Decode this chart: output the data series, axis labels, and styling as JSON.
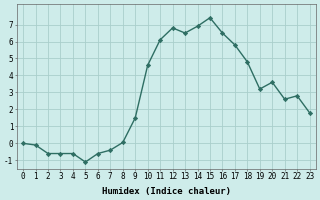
{
  "x": [
    0,
    1,
    2,
    3,
    4,
    5,
    6,
    7,
    8,
    9,
    10,
    11,
    12,
    13,
    14,
    15,
    16,
    17,
    18,
    19,
    20,
    21,
    22,
    23
  ],
  "y": [
    0.0,
    -0.1,
    -0.6,
    -0.6,
    -0.6,
    -1.1,
    -0.6,
    -0.4,
    0.05,
    1.5,
    4.6,
    6.1,
    6.8,
    6.5,
    6.9,
    7.4,
    6.5,
    5.8,
    4.8,
    3.2,
    3.6,
    2.6,
    2.8,
    1.8
  ],
  "bg_color": "#ceecea",
  "line_color": "#2e6e63",
  "marker": "D",
  "markersize": 2.2,
  "linewidth": 1.0,
  "xlabel": "Humidex (Indice chaleur)",
  "xlim": [
    -0.5,
    23.5
  ],
  "ylim": [
    -1.5,
    8.2
  ],
  "yticks": [
    -1,
    0,
    1,
    2,
    3,
    4,
    5,
    6,
    7
  ],
  "xticks": [
    0,
    1,
    2,
    3,
    4,
    5,
    6,
    7,
    8,
    9,
    10,
    11,
    12,
    13,
    14,
    15,
    16,
    17,
    18,
    19,
    20,
    21,
    22,
    23
  ],
  "grid_color": "#aacfcc",
  "xlabel_fontsize": 6.5,
  "tick_fontsize": 5.5
}
